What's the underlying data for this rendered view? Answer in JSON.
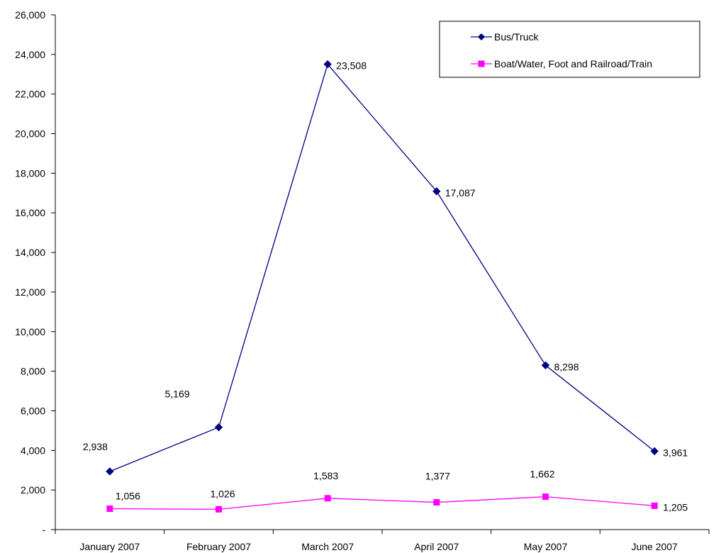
{
  "chart_data": {
    "type": "line",
    "title": "",
    "xlabel": "",
    "ylabel": "",
    "categories": [
      "January 2007",
      "February 2007",
      "March 2007",
      "April 2007",
      "May 2007",
      "June 2007"
    ],
    "ylim": [
      0,
      26000
    ],
    "yticks": [
      0,
      2000,
      4000,
      6000,
      8000,
      10000,
      12000,
      14000,
      16000,
      18000,
      20000,
      22000,
      24000,
      26000
    ],
    "ytick_labels": [
      "-",
      "2,000",
      "4,000",
      "6,000",
      "8,000",
      "10,000",
      "12,000",
      "14,000",
      "16,000",
      "18,000",
      "20,000",
      "22,000",
      "24,000",
      "26,000"
    ],
    "grid": false,
    "legend_position": "top-right",
    "series": [
      {
        "name": "Bus/Truck",
        "color": "#000080",
        "marker": "diamond",
        "values": [
          2938,
          5169,
          23508,
          17087,
          8298,
          3961
        ],
        "labels": [
          "2,938",
          "5,169",
          "23,508",
          "17,087",
          "8,298",
          "3,961"
        ]
      },
      {
        "name": "Boat/Water, Foot and Railroad/Train",
        "color": "#FF00FF",
        "marker": "square",
        "values": [
          1056,
          1026,
          1583,
          1377,
          1662,
          1205
        ],
        "labels": [
          "1,056",
          "1,026",
          "1,583",
          "1,377",
          "1,662",
          "1,205"
        ]
      }
    ]
  }
}
